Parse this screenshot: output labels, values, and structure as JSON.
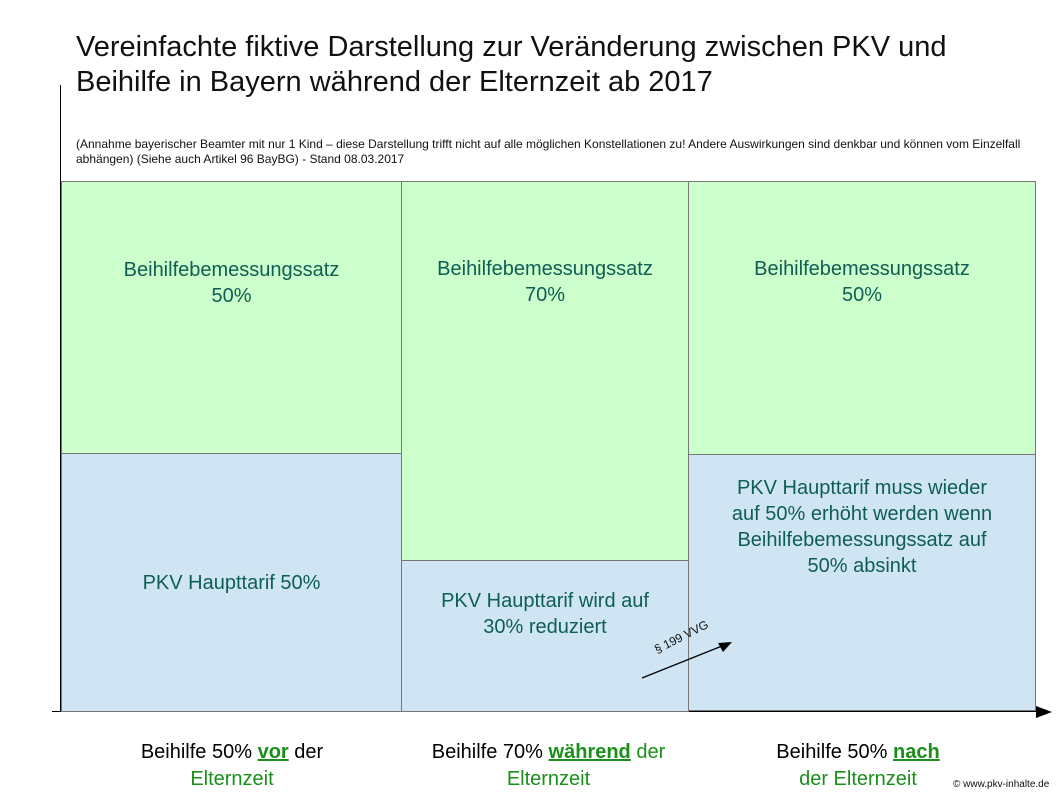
{
  "title": "Vereinfachte fiktive Darstellung zur Veränderung zwischen PKV und Beihilfe in Bayern während der Elternzeit ab 2017",
  "note": "(Annahme bayerischer Beamter mit nur 1 Kind – diese Darstellung trifft nicht auf alle möglichen Konstellationen zu! Andere Auswirkungen sind denkbar und können vom Einzelfall abhängen) (Siehe auch Artikel 96 BayBG) - Stand 08.03.2017",
  "columns": [
    {
      "beihilfe_text": "Beihilfebemessungssatz",
      "beihilfe_percent": "50%",
      "pkv_text": "PKV Haupttarif 50%",
      "label_pre": "Beihilfe 50%",
      "label_keyword": "vor",
      "label_mid": "der",
      "label_post": "Elternzeit"
    },
    {
      "beihilfe_text": "Beihilfebemessungssatz",
      "beihilfe_percent": "70%",
      "pkv_text": "PKV Haupttarif wird auf 30% reduziert",
      "label_pre": "Beihilfe 70%",
      "label_keyword": "während",
      "label_mid": "der",
      "label_post": "Elternzeit"
    },
    {
      "beihilfe_text": "Beihilfebemessungssatz",
      "beihilfe_percent": "50%",
      "pkv_text": "PKV Haupttarif muss wieder auf 50% erhöht werden wenn Beihilfebemessungssatz auf 50% absinkt",
      "label_pre": "Beihilfe 50%",
      "label_keyword": "nach",
      "label_mid": "",
      "label_post": "der Elternzeit"
    }
  ],
  "law_annotation": "§ 199 VVG",
  "copyright": "© www.pkv-inhalte.de",
  "colors": {
    "beihilfe_fill": "#ccffcc",
    "pkv_fill": "#cfe5f3",
    "box_text": "#0e5e52",
    "keyword": "#1a8f1a"
  }
}
